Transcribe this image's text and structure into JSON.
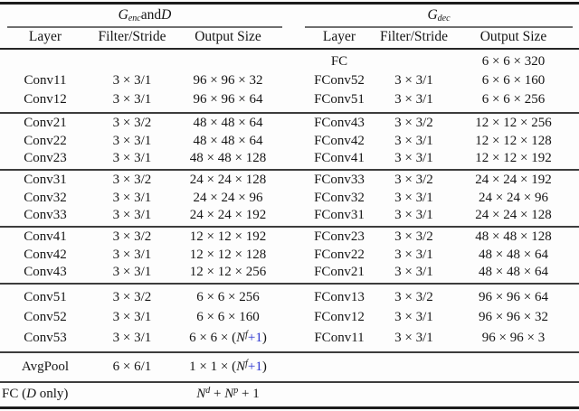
{
  "colors": {
    "accent_blue": "#2b35cf",
    "text": "#151515"
  },
  "titles": {
    "left": [
      {
        "t": "G",
        "s": "i"
      },
      {
        "t": "enc",
        "s": "subi"
      },
      {
        "t": " and ",
        "s": "n"
      },
      {
        "t": "D",
        "s": "i"
      }
    ],
    "right": [
      {
        "t": "G",
        "s": "i"
      },
      {
        "t": "dec",
        "s": "subi"
      }
    ]
  },
  "headers": {
    "left": [
      "Layer",
      "Filter/Stride",
      "Output Size"
    ],
    "right": [
      "Layer",
      "Filter/Stride",
      "Output Size"
    ]
  },
  "groups": [
    {
      "rows": [
        [
          "",
          "",
          "",
          "FC",
          "",
          "6 × 6 × 320"
        ],
        [
          "Conv11",
          "3 × 3/1",
          "96 × 96 × 32",
          "FConv52",
          "3 × 3/1",
          "6 × 6 × 160"
        ],
        [
          "Conv12",
          "3 × 3/1",
          "96 × 96 × 64",
          "FConv51",
          "3 × 3/1",
          "6 × 6 × 256"
        ]
      ]
    },
    {
      "rows": [
        [
          "Conv21",
          "3 × 3/2",
          "48 × 48 × 64",
          "FConv43",
          "3 × 3/2",
          "12 × 12 × 256"
        ],
        [
          "Conv22",
          "3 × 3/1",
          "48 × 48 × 64",
          "FConv42",
          "3 × 3/1",
          "12 × 12 × 128"
        ],
        [
          "Conv23",
          "3 × 3/1",
          "48 × 48 × 128",
          "FConv41",
          "3 × 3/1",
          "12 × 12 × 192"
        ]
      ]
    },
    {
      "rows": [
        [
          "Conv31",
          "3 × 3/2",
          "24 × 24 × 128",
          "FConv33",
          "3 × 3/2",
          "24 × 24 × 192"
        ],
        [
          "Conv32",
          "3 × 3/1",
          "24 × 24 × 96",
          "FConv32",
          "3 × 3/1",
          "24 × 24 × 96"
        ],
        [
          "Conv33",
          "3 × 3/1",
          "24 × 24 × 192",
          "FConv31",
          "3 × 3/1",
          "24 × 24 × 128"
        ]
      ]
    },
    {
      "rows": [
        [
          "Conv41",
          "3 × 3/2",
          "12 × 12 × 192",
          "FConv23",
          "3 × 3/2",
          "48 × 48 × 128"
        ],
        [
          "Conv42",
          "3 × 3/1",
          "12 × 12 × 128",
          "FConv22",
          "3 × 3/1",
          "48 × 48 × 64"
        ],
        [
          "Conv43",
          "3 × 3/1",
          "12 × 12 × 256",
          "FConv21",
          "3 × 3/1",
          "48 × 48 × 64"
        ]
      ]
    },
    {
      "rows": [
        [
          "Conv51",
          "3 × 3/2",
          "6 × 6 × 256",
          "FConv13",
          "3 × 3/2",
          "96 × 96 × 64"
        ],
        [
          "Conv52",
          "3 × 3/1",
          "6 × 6 × 160",
          "FConv12",
          "3 × 3/1",
          "96 × 96 × 32"
        ],
        [
          "Conv53",
          "3 × 3/1",
          [
            {
              "t": "6 × 6 × (",
              "s": "n"
            },
            {
              "t": "N",
              "s": "i"
            },
            {
              "t": "f",
              "s": "supi"
            },
            {
              "t": "+1",
              "s": "blue"
            },
            {
              "t": ")",
              "s": "n"
            }
          ],
          "FConv11",
          "3 × 3/1",
          "96 × 96 × 3"
        ]
      ]
    },
    {
      "rows": [
        [
          "AvgPool",
          "6 × 6/1",
          [
            {
              "t": "1 × 1 × (",
              "s": "n"
            },
            {
              "t": "N",
              "s": "i"
            },
            {
              "t": "f",
              "s": "supi"
            },
            {
              "t": "+1",
              "s": "blue"
            },
            {
              "t": ")",
              "s": "n"
            }
          ],
          "",
          "",
          ""
        ]
      ]
    }
  ],
  "fc_row": {
    "label": [
      {
        "t": "FC (",
        "s": "n"
      },
      {
        "t": "D",
        "s": "i"
      },
      {
        "t": " only)",
        "s": "n"
      }
    ],
    "output": [
      {
        "t": "N",
        "s": "i"
      },
      {
        "t": "d",
        "s": "supi"
      },
      {
        "t": " + ",
        "s": "n"
      },
      {
        "t": "N",
        "s": "i"
      },
      {
        "t": "p",
        "s": "supi"
      },
      {
        "t": " + 1",
        "s": "n"
      }
    ]
  }
}
